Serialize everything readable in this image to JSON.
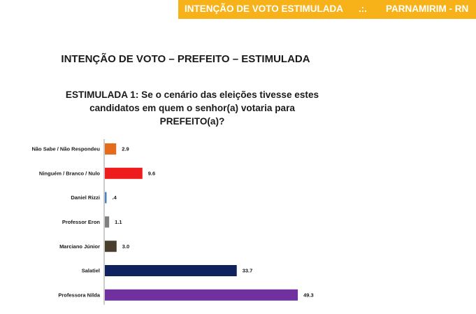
{
  "header": {
    "left": "INTENÇÃO DE VOTO ESTIMULADA",
    "sep": ".:.",
    "right": "PARNAMIRIM - RN"
  },
  "title": "INTENÇÃO DE VOTO – PREFEITO – ESTIMULADA",
  "question": {
    "line1": "ESTIMULADA 1: Se o cenário das eleições tivesse estes",
    "line2": "candidatos em quem o senhor(a) votaria para",
    "line3": "PREFEITO(a)?"
  },
  "chart_data": {
    "type": "bar",
    "orientation": "horizontal",
    "categories": [
      "Não Sabe / Não Respondeu",
      "Ninguém / Branco / Nulo",
      "Daniel Rizzi",
      "Professor Eron",
      "Marciano Júnior",
      "Salatiel",
      "Professora Nilda"
    ],
    "values": [
      2.9,
      9.6,
      0.4,
      1.1,
      3.0,
      33.7,
      49.3
    ],
    "value_labels": [
      "2.9",
      "9.6",
      ".4",
      "1.1",
      "3.0",
      "33.7",
      "49.3"
    ],
    "colors": [
      "#e46c1c",
      "#ee1c1c",
      "#4f81bd",
      "#7f7f7f",
      "#4a3f2c",
      "#10225e",
      "#7030a0"
    ],
    "xlim": [
      0,
      50
    ],
    "grid": false,
    "legend": "none"
  }
}
